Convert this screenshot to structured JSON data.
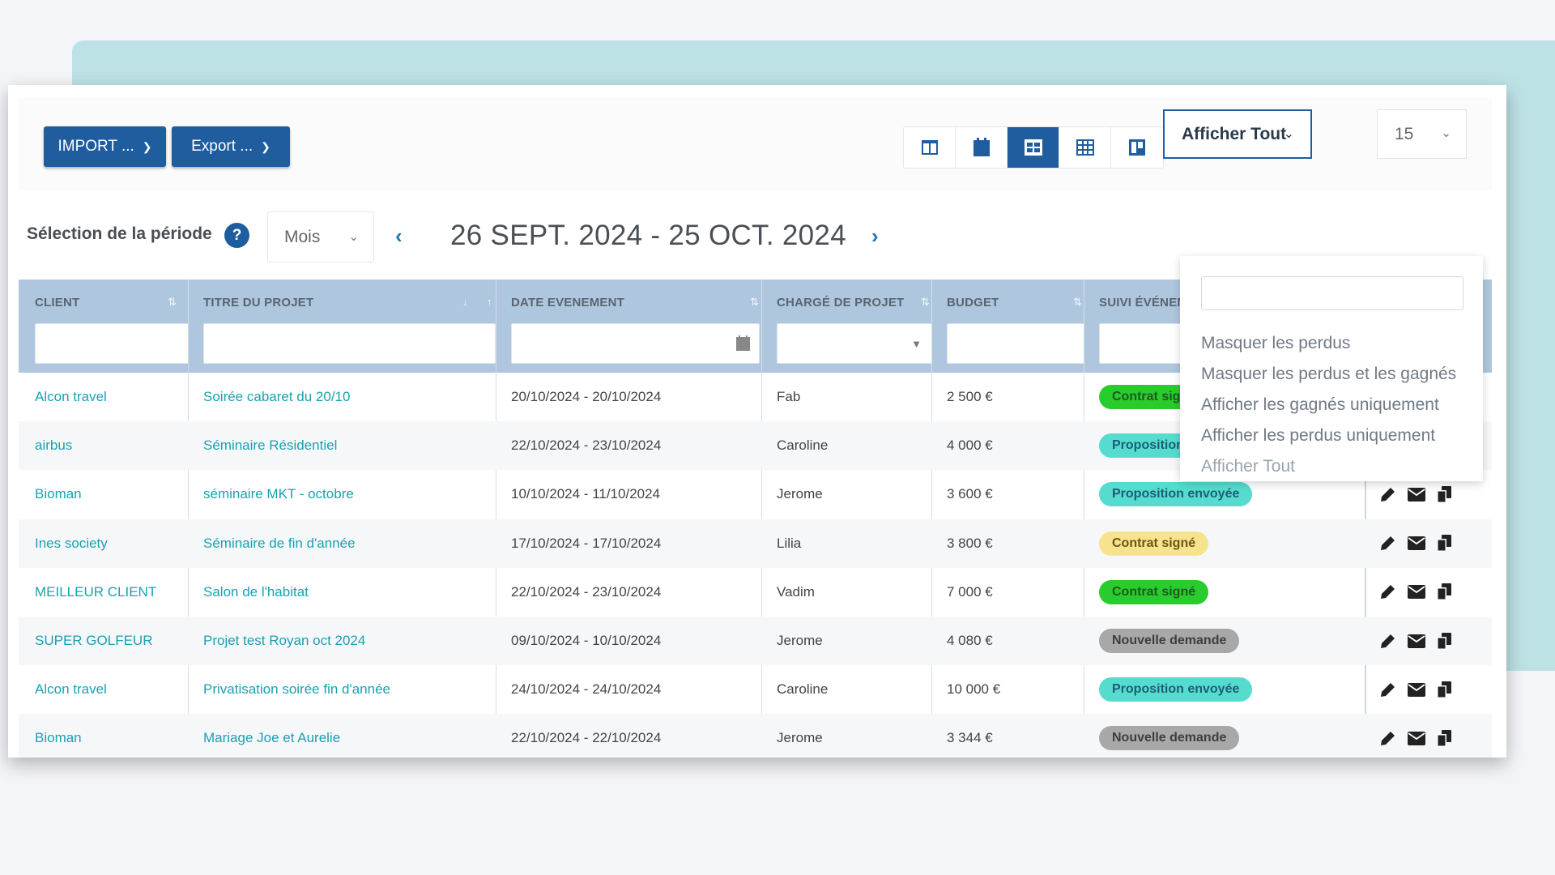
{
  "toolbar": {
    "import_label": "IMPORT ...",
    "export_label": "Export ...",
    "view_icons": [
      "split-view-icon",
      "calendar-icon",
      "list-view-icon",
      "grid-view-icon",
      "kanban-icon"
    ],
    "active_view": "list-view-icon",
    "filter_selected": "Afficher Tout",
    "page_size": "15"
  },
  "period": {
    "label": "Sélection de la période",
    "help": "?",
    "unit": "Mois",
    "range": "26 SEPT. 2024 - 25 OCT. 2024"
  },
  "filter_dropdown": {
    "search_placeholder": "",
    "options": [
      "Masquer les perdus",
      "Masquer les perdus et les gagnés",
      "Afficher les gagnés uniquement",
      "Afficher les perdus uniquement",
      "Afficher Tout"
    ]
  },
  "table": {
    "columns": [
      "CLIENT",
      "TITRE DU PROJET",
      "DATE EVENEMENT",
      "CHARGÉ DE PROJET",
      "BUDGET",
      "SUIVI ÉVÉNEM"
    ],
    "rows": [
      {
        "client": "Alcon travel",
        "title": "Soirée cabaret du 20/10",
        "date": "20/10/2024 - 20/10/2024",
        "manager": "Fab",
        "budget": "2 500 €",
        "status": "Contrat signé",
        "status_color": "green"
      },
      {
        "client": "airbus",
        "title": "Séminaire Résidentiel",
        "date": "22/10/2024 - 23/10/2024",
        "manager": "Caroline",
        "budget": "4 000 €",
        "status": "Proposition envoyée",
        "status_color": "teal"
      },
      {
        "client": "Bioman",
        "title": "séminaire MKT - octobre",
        "date": "10/10/2024 - 11/10/2024",
        "manager": "Jerome",
        "budget": "3 600 €",
        "status": "Proposition envoyée",
        "status_color": "teal"
      },
      {
        "client": "Ines society",
        "title": "Séminaire de fin d'année",
        "date": "17/10/2024 - 17/10/2024",
        "manager": "Lilia",
        "budget": "3 800 €",
        "status": "Contrat signé",
        "status_color": "yellow"
      },
      {
        "client": "MEILLEUR CLIENT",
        "title": "Salon de l'habitat",
        "date": "22/10/2024 - 23/10/2024",
        "manager": "Vadim",
        "budget": "7 000 €",
        "status": "Contrat signé",
        "status_color": "green"
      },
      {
        "client": "SUPER GOLFEUR",
        "title": "Projet test Royan oct 2024",
        "date": "09/10/2024 - 10/10/2024",
        "manager": "Jerome",
        "budget": "4 080 €",
        "status": "Nouvelle demande",
        "status_color": "grey"
      },
      {
        "client": "Alcon travel",
        "title": "Privatisation soirée fin d'année",
        "date": "24/10/2024 - 24/10/2024",
        "manager": "Caroline",
        "budget": "10 000 €",
        "status": "Proposition envoyée",
        "status_color": "teal"
      },
      {
        "client": "Bioman",
        "title": "Mariage Joe et Aurelie",
        "date": "22/10/2024 - 22/10/2024",
        "manager": "Jerome",
        "budget": "3 344 €",
        "status": "Nouvelle demande",
        "status_color": "grey"
      }
    ],
    "row_actions": [
      "pencil-icon",
      "envelope-icon",
      "copy-icon"
    ]
  }
}
